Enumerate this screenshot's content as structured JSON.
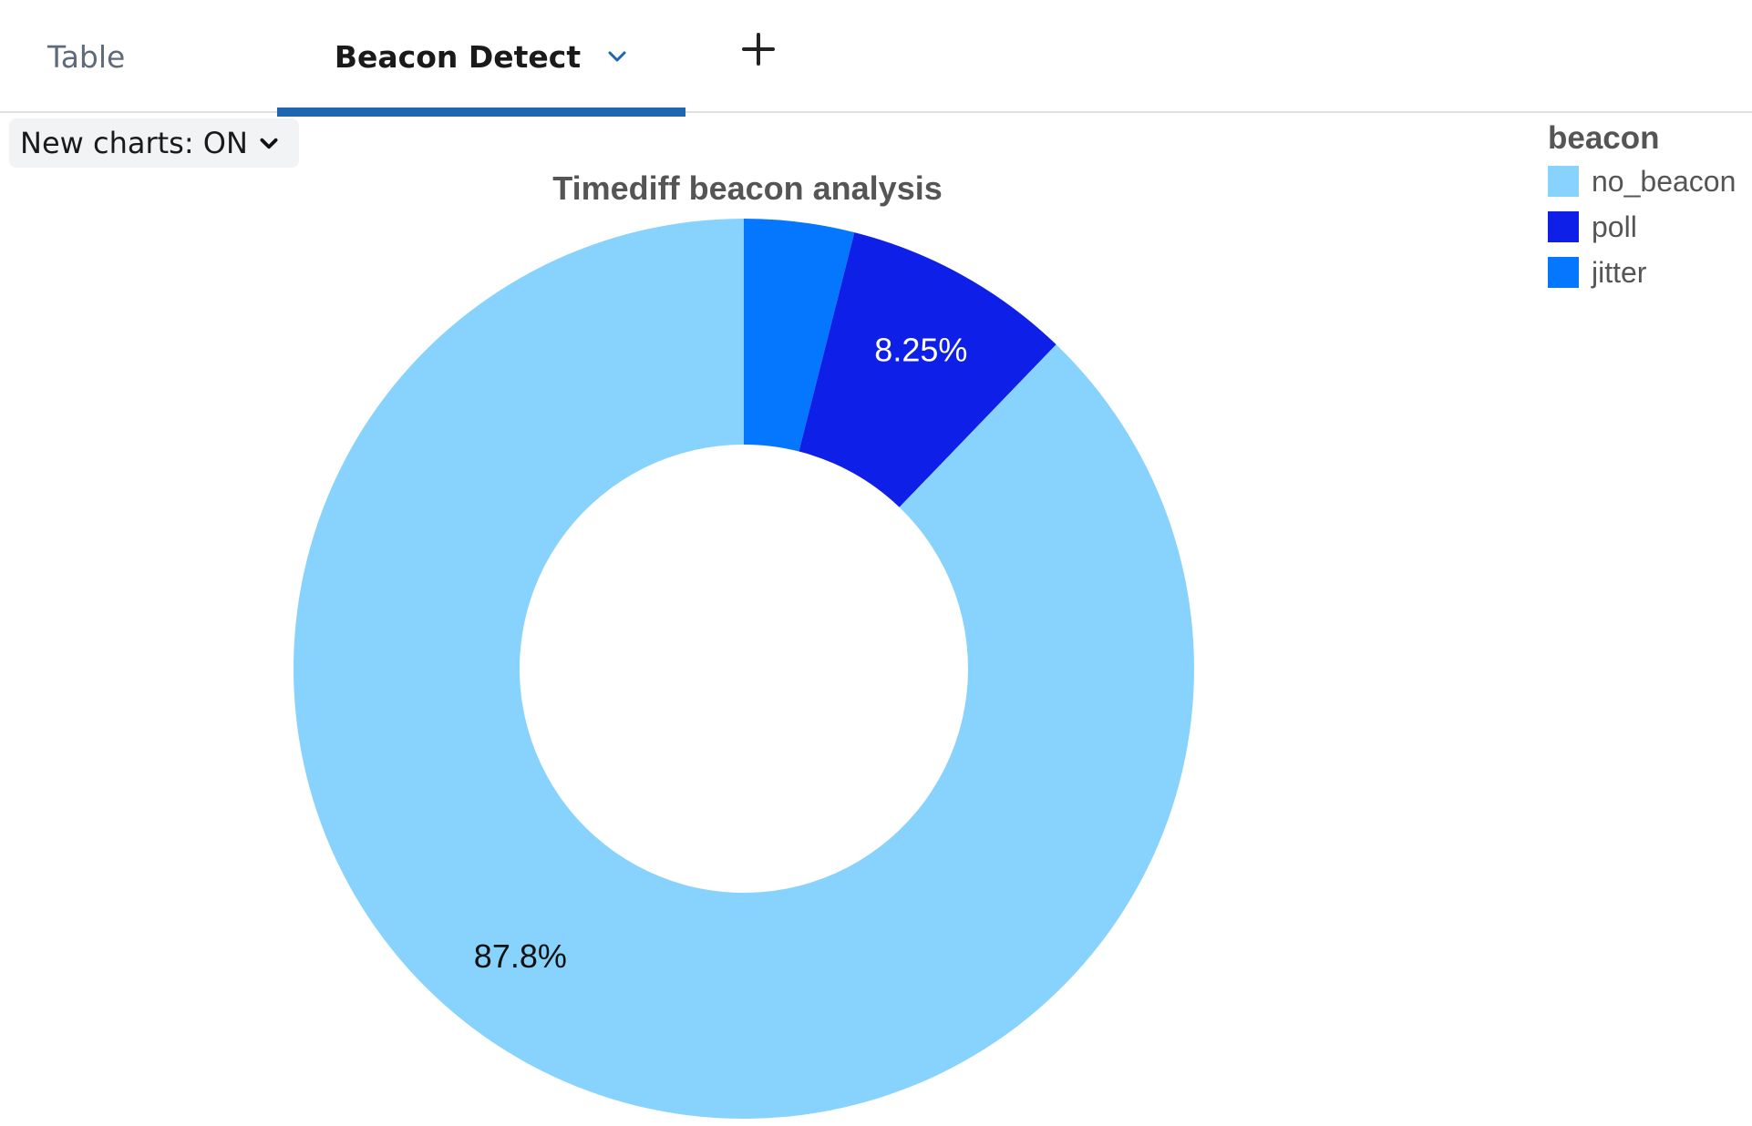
{
  "tabs": [
    {
      "label": "Table",
      "active": false
    },
    {
      "label": "Beacon Detect",
      "active": true
    }
  ],
  "toolbar": {
    "new_charts_label": "New charts: ON"
  },
  "icons": {
    "tab_menu": "chevron-down-icon",
    "add_tab": "plus-icon",
    "new_charts_dropdown": "chevron-down-icon"
  },
  "colors": {
    "accent": "#1f66b0",
    "no_beacon": "#87d3fd",
    "poll": "#0e1fe8",
    "jitter": "#0577ff"
  },
  "chart_data": {
    "type": "pie",
    "donut": true,
    "title": "Timediff beacon analysis",
    "legend_title": "beacon",
    "legend_position": "top-right",
    "slices": [
      {
        "name": "jitter",
        "value": 3.95,
        "color": "#0577ff",
        "label": ""
      },
      {
        "name": "poll",
        "value": 8.25,
        "color": "#0e1fe8",
        "label": "8.25%"
      },
      {
        "name": "no_beacon",
        "value": 87.8,
        "color": "#87d3fd",
        "label": "87.8%"
      }
    ],
    "legend": [
      {
        "name": "no_beacon",
        "color": "#87d3fd"
      },
      {
        "name": "poll",
        "color": "#0e1fe8"
      },
      {
        "name": "jitter",
        "color": "#0577ff"
      }
    ]
  }
}
